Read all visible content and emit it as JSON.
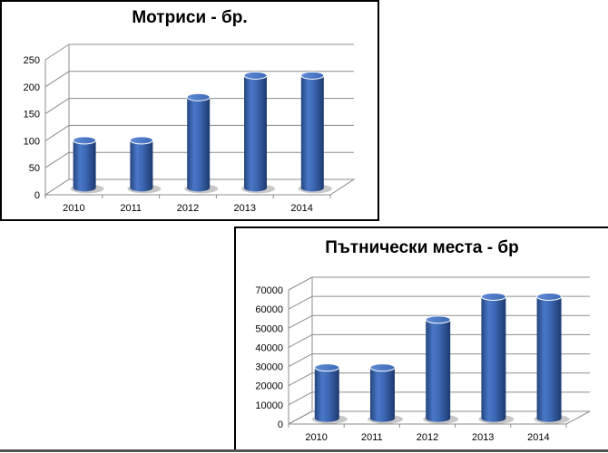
{
  "chart_data": [
    {
      "type": "bar",
      "title": "Мотриси - бр.",
      "categories": [
        "2010",
        "2011",
        "2012",
        "2013",
        "2014"
      ],
      "values": [
        88,
        88,
        168,
        208,
        208
      ],
      "ylim": [
        0,
        250
      ],
      "yticks": [
        "0",
        "50",
        "100",
        "150",
        "200",
        "250"
      ],
      "xlabel": "",
      "ylabel": "",
      "bar_color": "#3a65b0",
      "style": "3d-cylinder",
      "grid": true
    },
    {
      "type": "bar",
      "title": "Пътнически места - бр",
      "categories": [
        "2010",
        "2011",
        "2012",
        "2013",
        "2014"
      ],
      "values": [
        26500,
        26500,
        51500,
        63500,
        63500
      ],
      "ylim": [
        0,
        70000
      ],
      "yticks": [
        "0",
        "10000",
        "20000",
        "30000",
        "40000",
        "50000",
        "60000",
        "70000"
      ],
      "xlabel": "",
      "ylabel": "",
      "bar_color": "#3a65b0",
      "style": "3d-cylinder",
      "grid": true
    }
  ]
}
